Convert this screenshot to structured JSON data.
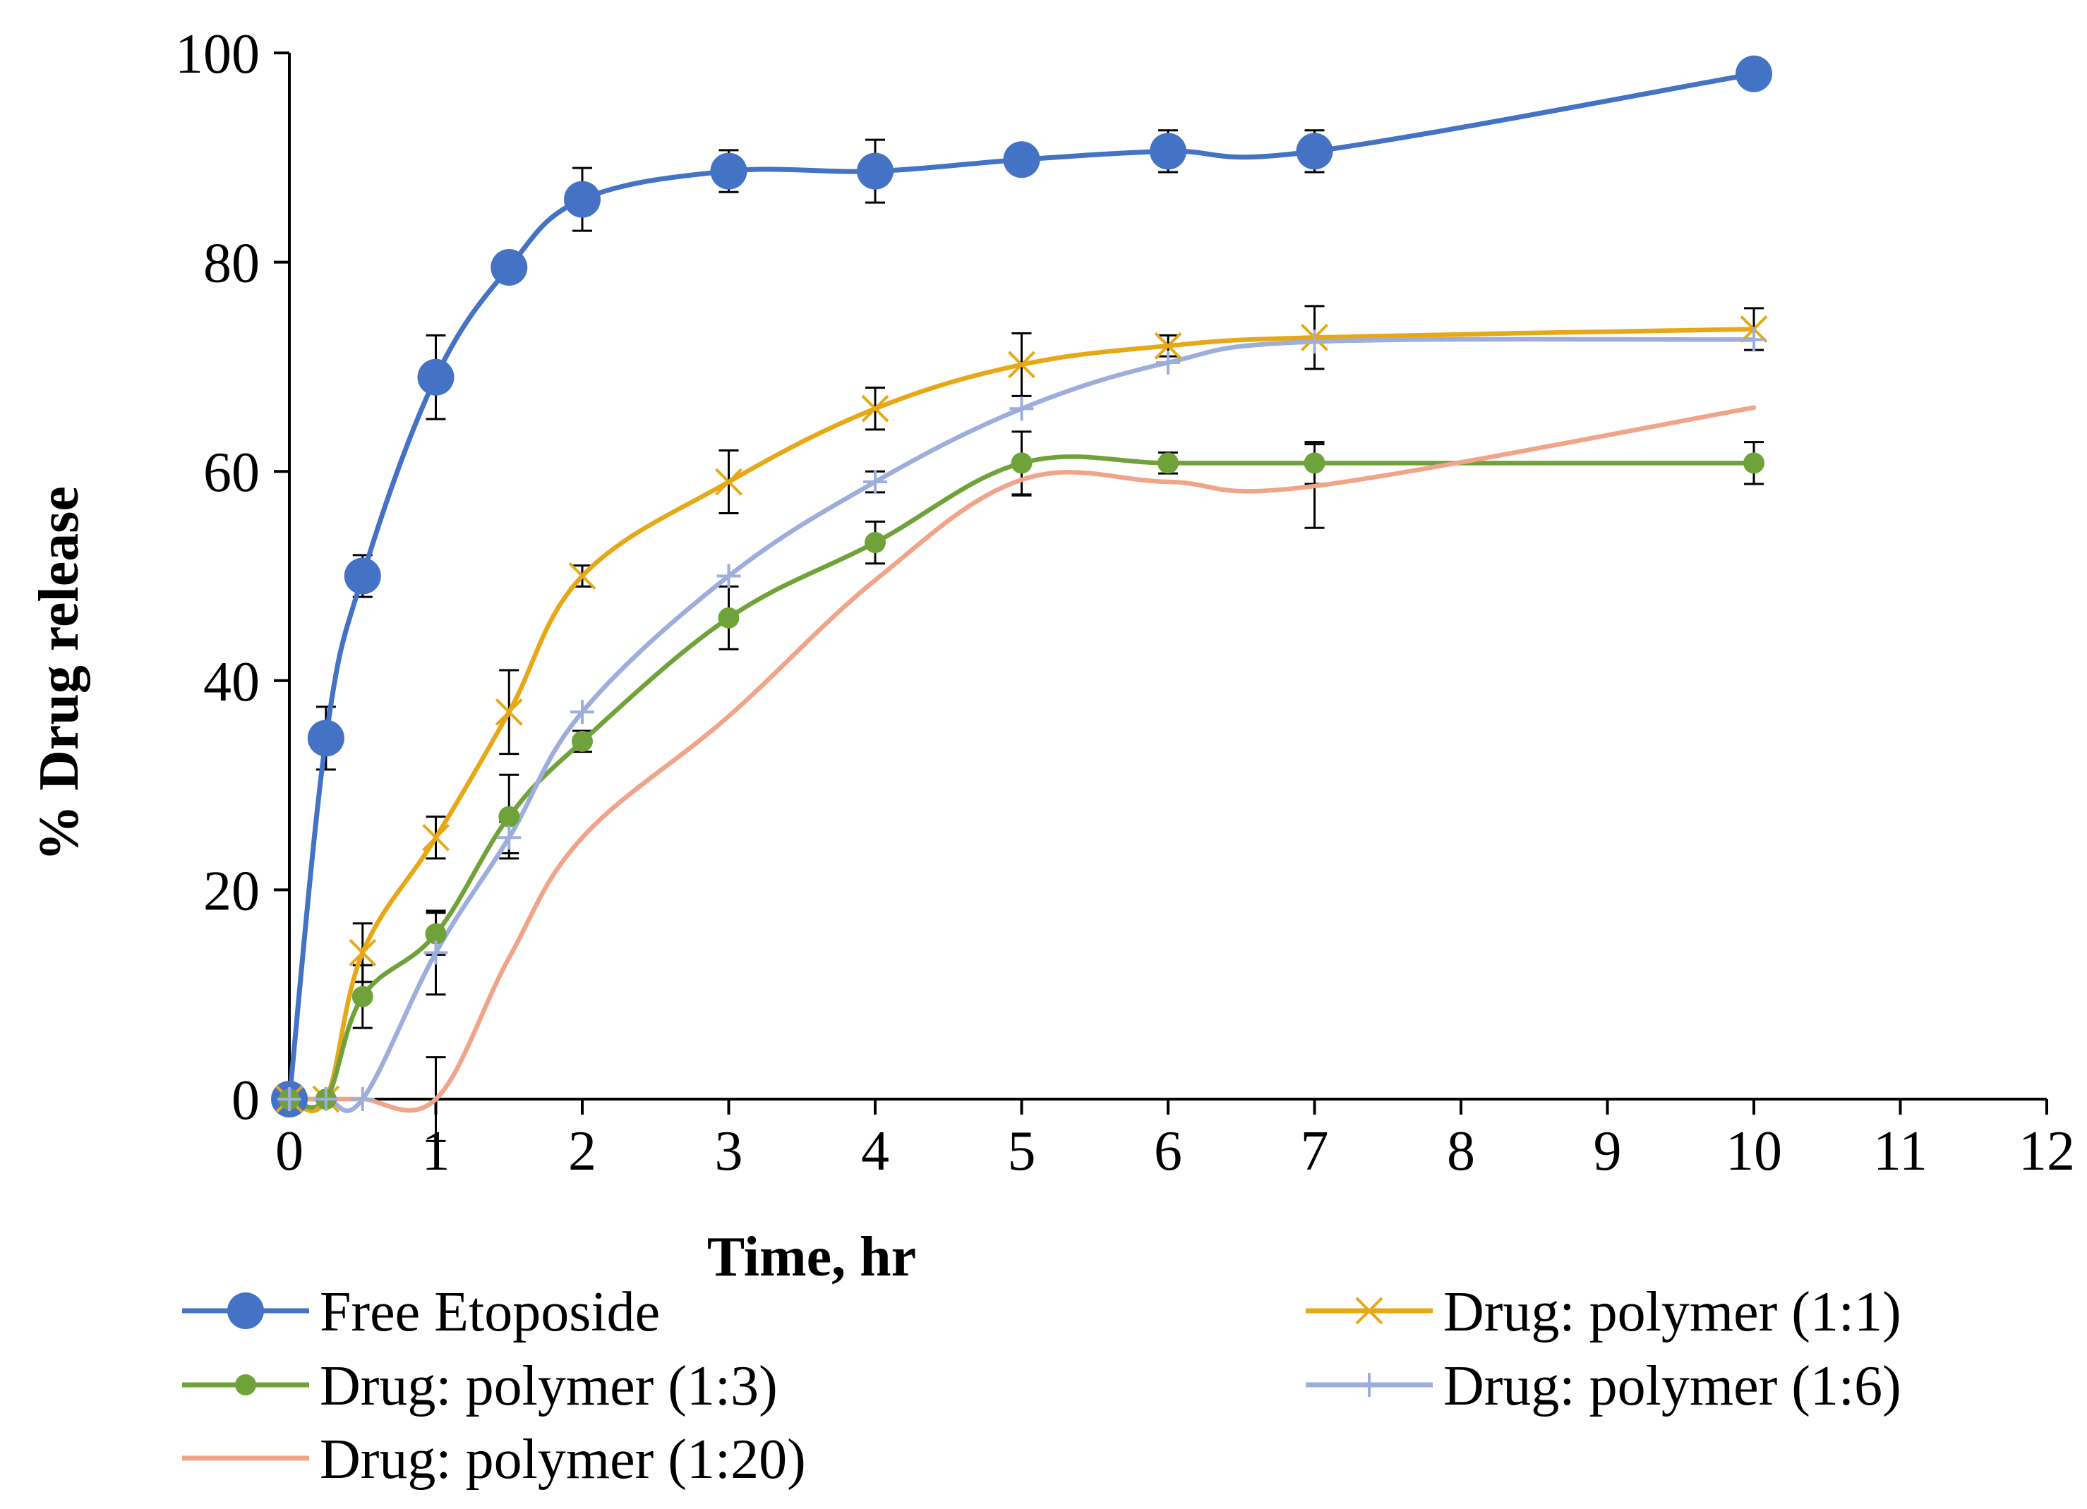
{
  "chart_data": {
    "type": "line",
    "title": "",
    "xlabel": "Time, hr",
    "ylabel": "% Drug release",
    "xlim": [
      0,
      12
    ],
    "ylim": [
      0,
      100
    ],
    "xticks": [
      "0",
      "1",
      "2",
      "3",
      "4",
      "5",
      "6",
      "7",
      "8",
      "9",
      "10",
      "11",
      "12"
    ],
    "yticks": [
      "0",
      "20",
      "40",
      "60",
      "80",
      "100"
    ],
    "grid": false,
    "legend_position": "bottom",
    "series": [
      {
        "name": "Free Etoposide",
        "color": "#4472C4",
        "marker": "circle-large",
        "x": [
          0,
          0.25,
          0.5,
          1,
          1.5,
          2,
          3,
          4,
          5,
          6,
          7,
          10
        ],
        "y": [
          0,
          34.5,
          50,
          69,
          79.5,
          86,
          88.7,
          88.7,
          89.8,
          90.6,
          90.6,
          98
        ],
        "err": [
          0,
          3,
          2,
          4,
          0,
          3,
          2,
          3,
          0,
          2,
          2,
          0
        ]
      },
      {
        "name": "Drug: polymer (1:1)",
        "color": "#E6A817",
        "marker": "x",
        "x": [
          0,
          0.25,
          0.5,
          1,
          1.5,
          2,
          3,
          4,
          5,
          6,
          7,
          10
        ],
        "y": [
          0,
          0,
          14,
          25,
          37,
          50,
          59,
          66,
          70.2,
          72,
          72.8,
          73.6
        ],
        "err": [
          0,
          0,
          2.8,
          2,
          4,
          1,
          3,
          2,
          3,
          1,
          3,
          2
        ]
      },
      {
        "name": "Drug: polymer (1:3)",
        "color": "#6FA33A",
        "marker": "circle-small",
        "x": [
          0,
          0.25,
          0.5,
          1,
          1.5,
          2,
          3,
          4,
          5,
          6,
          7,
          10
        ],
        "y": [
          0,
          0,
          9.8,
          15.8,
          27,
          34.2,
          46,
          53.2,
          60.8,
          60.8,
          60.8,
          60.8
        ],
        "err": [
          0,
          0,
          3,
          2,
          4,
          1,
          3,
          2,
          3,
          1,
          2,
          2
        ]
      },
      {
        "name": "Drug: polymer (1:6)",
        "color": "#9DAEDC",
        "marker": "plus",
        "x": [
          0,
          0.25,
          0.5,
          1,
          1.5,
          2,
          3,
          4,
          5,
          6,
          7,
          10
        ],
        "y": [
          0,
          0,
          0,
          14,
          25,
          37,
          50,
          59,
          66,
          70.4,
          72.4,
          72.6
        ],
        "err": [
          0,
          0,
          0,
          4,
          1.5,
          0,
          0,
          1,
          0,
          0,
          0,
          0
        ]
      },
      {
        "name": "Drug: polymer (1:20)",
        "color": "#F0A48A",
        "marker": "none",
        "x": [
          0,
          0.25,
          0.5,
          1,
          1.5,
          2,
          3,
          4,
          5,
          6,
          7,
          10
        ],
        "y": [
          0,
          0,
          0,
          0,
          13.5,
          25,
          36.6,
          49.6,
          59.2,
          59,
          58.6,
          66.1
        ],
        "err": [
          0,
          0,
          0,
          4,
          0,
          0,
          0,
          0,
          1.5,
          0,
          4,
          0
        ]
      }
    ]
  }
}
